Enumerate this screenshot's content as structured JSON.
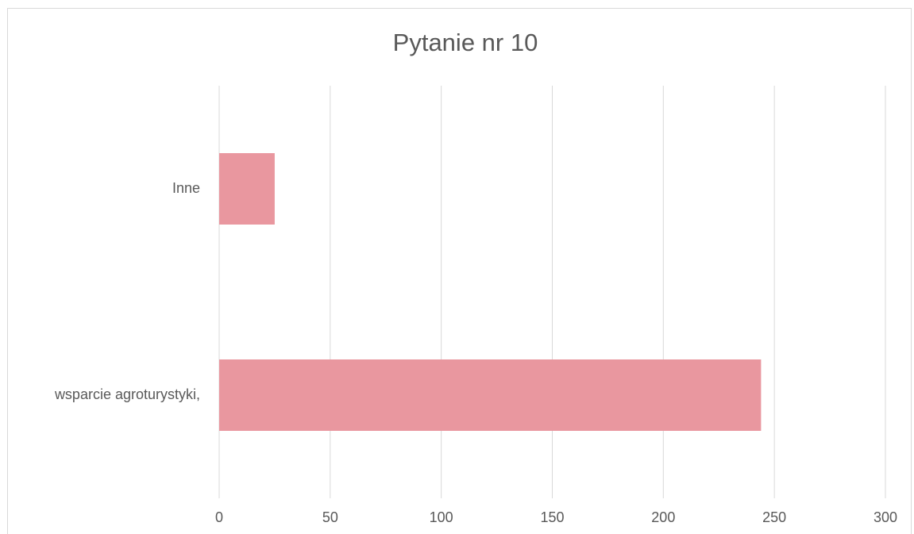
{
  "chart_data": {
    "type": "bar",
    "orientation": "horizontal",
    "title": "Pytanie nr 10",
    "categories": [
      "Inne",
      "wsparcie agroturystyki,"
    ],
    "values": [
      25,
      244
    ],
    "color": "#e9979f",
    "xlim": [
      0,
      300
    ],
    "xticks": [
      0,
      50,
      100,
      150,
      200,
      250,
      300
    ],
    "grid": true
  }
}
